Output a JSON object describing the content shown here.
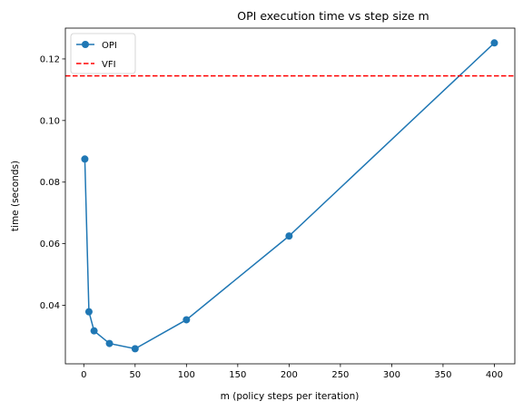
{
  "chart_data": {
    "type": "line",
    "title": "OPI execution time vs step size m",
    "xlabel": "m (policy steps per iteration)",
    "ylabel": "time (seconds)",
    "xlim": [
      -17.95,
      419.95
    ],
    "ylim": [
      0.021,
      0.13
    ],
    "xticks": [
      0,
      50,
      100,
      150,
      200,
      250,
      300,
      350,
      400
    ],
    "yticks": [
      0.04,
      0.06,
      0.08,
      0.1,
      0.12
    ],
    "ytick_labels": [
      "0.04",
      "0.06",
      "0.08",
      "0.10",
      "0.12"
    ],
    "grid": false,
    "legend": "top-left",
    "series": [
      {
        "name": "OPI",
        "color": "#1f77b4",
        "style": "solid-with-circle-markers",
        "x": [
          1,
          5,
          10,
          25,
          50,
          100,
          200,
          400
        ],
        "y": [
          0.0875,
          0.0379,
          0.0317,
          0.0276,
          0.0259,
          0.0353,
          0.0625,
          0.1252
        ]
      }
    ],
    "reference_lines": [
      {
        "name": "VFI",
        "color": "#ff0000",
        "style": "dashed",
        "y": 0.1145
      }
    ]
  }
}
